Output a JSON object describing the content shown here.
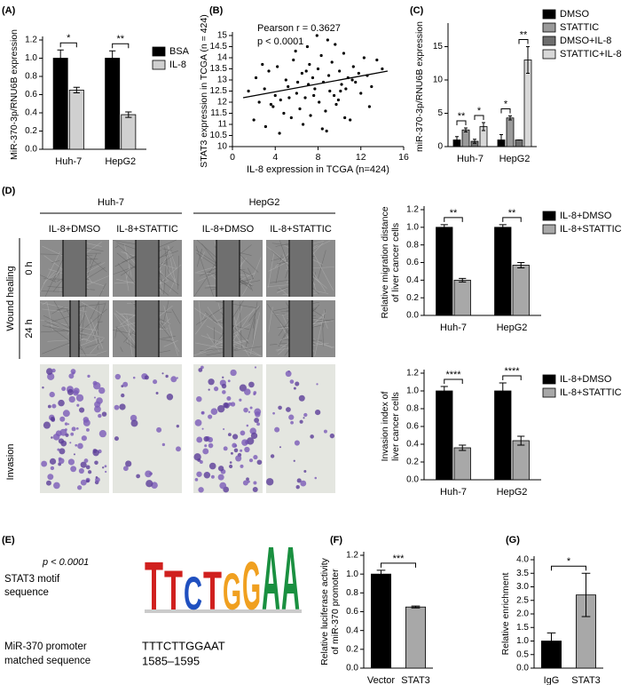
{
  "panel_labels": [
    "(A)",
    "(B)",
    "(C)",
    "(D)",
    "(E)",
    "(F)",
    "(G)"
  ],
  "chart_data": [
    {
      "type": "bar",
      "ylabel": [
        "MiR-370-3p/RNU6B expression"
      ],
      "categories": [
        "Huh-7",
        "HepG2"
      ],
      "series": [
        {
          "name": "BSA",
          "color": "#000000",
          "values": [
            1.0,
            1.0
          ],
          "errors": [
            0.09,
            0.08
          ]
        },
        {
          "name": "IL-8",
          "color": "#d0d0d0",
          "values": [
            0.65,
            0.38
          ],
          "errors": [
            0.03,
            0.03
          ]
        }
      ],
      "ylim": [
        0,
        1.2
      ],
      "yticks": [
        {
          "value": 0,
          "label": "0.0"
        },
        0.2,
        0.4,
        0.6,
        0.8,
        {
          "value": 1,
          "label": "1.0"
        },
        1.2
      ],
      "significance": [
        "*",
        "**"
      ]
    },
    {
      "type": "scatter",
      "xlabel": "IL-8 expression in TCGA (n=424)",
      "ylabel": [
        "STAT3 expression in TCGA (n = 424)"
      ],
      "annotations": [
        "Pearson r = 0.3627",
        "p < 0.0001"
      ],
      "color": "#000000",
      "x": [
        1.5,
        2,
        2.2,
        2.5,
        3,
        3.1,
        3.4,
        3.8,
        4,
        4.2,
        4.5,
        4.8,
        5,
        5.2,
        5.5,
        5.7,
        6,
        6.1,
        6.3,
        6.5,
        6.8,
        7,
        7.1,
        7.3,
        7.5,
        7.7,
        8,
        8.1,
        8.3,
        8.5,
        8.7,
        9,
        9.1,
        9.3,
        9.5,
        9.7,
        10,
        10.2,
        10.4,
        10.6,
        10.8,
        11,
        11.3,
        11.5,
        11.8,
        12,
        12.3,
        12.6,
        13,
        13.5,
        14,
        2.8,
        4.4,
        5.9,
        6.6,
        7.9,
        8.8,
        9.6,
        10.5,
        11.2,
        3.6,
        5.3,
        7.2,
        8.4,
        9.9,
        12.8,
        6.9,
        7.6,
        8.9,
        10.1
      ],
      "values": [
        12.5,
        11.2,
        13.1,
        12.0,
        12.6,
        10.9,
        13.4,
        11.8,
        12.3,
        13.6,
        12.1,
        11.5,
        13.0,
        12.7,
        11.3,
        13.9,
        12.4,
        12.9,
        11.7,
        13.3,
        12.2,
        14.5,
        12.8,
        11.4,
        13.1,
        12.6,
        13.5,
        12.0,
        14.1,
        12.9,
        11.6,
        13.2,
        12.5,
        13.8,
        12.3,
        11.9,
        13.4,
        12.8,
        14.2,
        12.6,
        13.1,
        11.2,
        13.6,
        12.9,
        13.3,
        12.4,
        14.0,
        13.2,
        12.7,
        13.9,
        13.5,
        13.7,
        10.6,
        14.3,
        11.0,
        15.0,
        10.7,
        14.6,
        11.3,
        13.0,
        11.9,
        12.2,
        13.7,
        10.8,
        12.1,
        11.8,
        13.4,
        12.3,
        14.8,
        12.5
      ],
      "trendline": {
        "x": [
          1,
          14.5
        ],
        "y": [
          12.2,
          13.4
        ]
      },
      "xlim": [
        0,
        16
      ],
      "xticks": [
        0,
        4,
        8,
        12,
        16
      ],
      "ylim": [
        10,
        15
      ],
      "yticks": [
        10,
        10.5,
        11,
        11.5,
        12,
        12.5,
        13,
        13.5,
        14,
        14.5,
        15
      ]
    },
    {
      "type": "bar",
      "ylabel": [
        "miR-370-3p/RNU6B expression"
      ],
      "categories": [
        "Huh-7",
        "HepG2"
      ],
      "series": [
        {
          "name": "DMSO",
          "color": "#000000",
          "values": [
            1.0,
            1.0
          ],
          "errors": [
            0.5,
            0.8
          ]
        },
        {
          "name": "STATTIC",
          "color": "#9a9a9a",
          "values": [
            2.5,
            4.3
          ],
          "errors": [
            0.3,
            0.3
          ]
        },
        {
          "name": "DMSO+IL-8",
          "color": "#6e6e6e",
          "values": [
            0.8,
            1.0
          ],
          "errors": [
            0.3,
            0
          ]
        },
        {
          "name": "STATTIC+IL-8",
          "color": "#d8d8d8",
          "values": [
            3.0,
            13.0
          ],
          "errors": [
            0.6,
            2.0
          ]
        }
      ],
      "ylim": [
        0,
        18
      ],
      "yticks": [
        0,
        5,
        10,
        15
      ],
      "significance": [
        "**",
        "*",
        "*",
        "**"
      ]
    },
    {
      "type": "bar",
      "ylabel": [
        "Relative migration distance",
        "of liver cancer cells"
      ],
      "categories": [
        "Huh-7",
        "HepG2"
      ],
      "series": [
        {
          "name": "IL-8+DMSO",
          "color": "#000000",
          "values": [
            1.0,
            1.0
          ],
          "errors": [
            0.03,
            0.03
          ]
        },
        {
          "name": "IL-8+STATTIC",
          "color": "#a8a8a8",
          "values": [
            0.4,
            0.57
          ],
          "errors": [
            0.02,
            0.03
          ]
        }
      ],
      "ylim": [
        0,
        1.2
      ],
      "yticks": [
        {
          "value": 0,
          "label": "0.0"
        },
        0.2,
        0.4,
        0.6,
        0.8,
        {
          "value": 1,
          "label": "1.0"
        },
        1.2
      ],
      "significance": [
        "**",
        "**"
      ]
    },
    {
      "type": "bar",
      "ylabel": [
        "Invasion index of",
        "liver cancer cells"
      ],
      "categories": [
        "Huh-7",
        "HepG2"
      ],
      "series": [
        {
          "name": "IL-8+DMSO",
          "color": "#000000",
          "values": [
            1.0,
            1.0
          ],
          "errors": [
            0.05,
            0.09
          ]
        },
        {
          "name": "IL-8+STATTIC",
          "color": "#a8a8a8",
          "values": [
            0.36,
            0.44
          ],
          "errors": [
            0.03,
            0.05
          ]
        }
      ],
      "ylim": [
        0,
        1.2
      ],
      "yticks": [
        {
          "value": 0,
          "label": "0.0"
        },
        0.2,
        0.4,
        0.6,
        0.8,
        {
          "value": 1,
          "label": "1.0"
        },
        1.2
      ],
      "significance": [
        "****",
        "****"
      ]
    },
    {
      "type": "bar",
      "ylabel": [
        "Relative luciferase activity",
        "of miR-370 promoter"
      ],
      "categories": [
        "Vector",
        "STAT3"
      ],
      "values": [
        1.0,
        0.65
      ],
      "errors": [
        0.04,
        0.01
      ],
      "colors": [
        "#000000",
        "#a8a8a8"
      ],
      "ylim": [
        0,
        1.2
      ],
      "yticks": [
        {
          "value": 0,
          "label": "0.0"
        },
        0.2,
        0.4,
        0.6,
        0.8,
        {
          "value": 1,
          "label": "1.0"
        },
        1.2
      ],
      "significance": [
        "***"
      ]
    },
    {
      "type": "bar",
      "ylabel": [
        "Relative enrichment"
      ],
      "categories": [
        "IgG",
        "STAT3"
      ],
      "values": [
        1.0,
        2.7
      ],
      "errors": [
        0.3,
        0.8
      ],
      "colors": [
        "#000000",
        "#a8a8a8"
      ],
      "ylim": [
        0,
        4
      ],
      "yticks": [
        {
          "value": 0,
          "label": "0.0"
        },
        0.5,
        {
          "value": 1,
          "label": "1.0"
        },
        1.5,
        {
          "value": 2,
          "label": "2.0"
        },
        2.5,
        {
          "value": 3,
          "label": "3.0"
        },
        3.5,
        {
          "value": 4,
          "label": "4.0"
        }
      ],
      "significance": [
        "*"
      ]
    }
  ],
  "images": {
    "cell_lines": [
      "Huh-7",
      "HepG2"
    ],
    "conditions": [
      "IL-8+DMSO",
      "IL-8+STATTIC",
      "IL-8+DMSO",
      "IL-8+STATTIC"
    ],
    "times": [
      "0 h",
      "24 h"
    ],
    "row_groups": [
      "Wound healing",
      "Invasion"
    ]
  },
  "motif": {
    "p_label": "p < 0.0001",
    "motif_label": [
      "STAT3 motif",
      "sequence"
    ],
    "promoter_label": [
      "MiR-370 promoter",
      "matched sequence"
    ],
    "sequence": "TTTCTTGGAAT",
    "position": "1585–1595",
    "logo": [
      "T",
      "T",
      "C",
      "T",
      "G",
      "G",
      "A",
      "A"
    ]
  }
}
